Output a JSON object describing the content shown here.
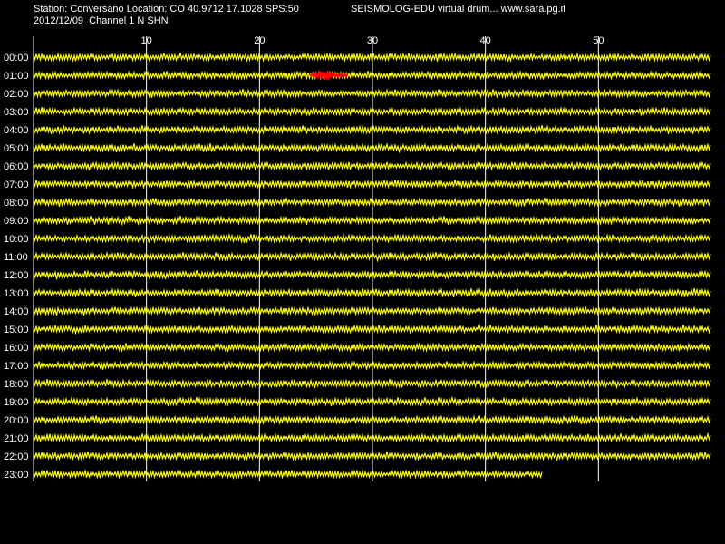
{
  "header": {
    "station_line": "Station: Conversano Location: CO 40.9712 17.1028 SPS:50",
    "date_line": "2012/12/09  Channel 1 N SHN",
    "app_line": "SEISMOLOG-EDU virtual drum... www.sara.pg.it"
  },
  "colors": {
    "background": "#000000",
    "trace": "#ffff00",
    "event": "#ff0000",
    "grid": "#ffffff",
    "text": "#ffffff"
  },
  "chart_data": {
    "type": "line",
    "x_ticks": [
      10,
      20,
      30,
      40,
      50
    ],
    "xlim": [
      0,
      60
    ],
    "rows": [
      "00:00",
      "01:00",
      "02:00",
      "03:00",
      "04:00",
      "05:00",
      "06:00",
      "07:00",
      "08:00",
      "09:00",
      "10:00",
      "11:00",
      "12:00",
      "13:00",
      "14:00",
      "15:00",
      "16:00",
      "17:00",
      "18:00",
      "19:00",
      "20:00",
      "21:00",
      "22:00",
      "23:00"
    ],
    "last_row_end_minute": 45,
    "event": {
      "row": "01:00",
      "start_minute": 24.5,
      "end_minute": 27.8
    }
  }
}
